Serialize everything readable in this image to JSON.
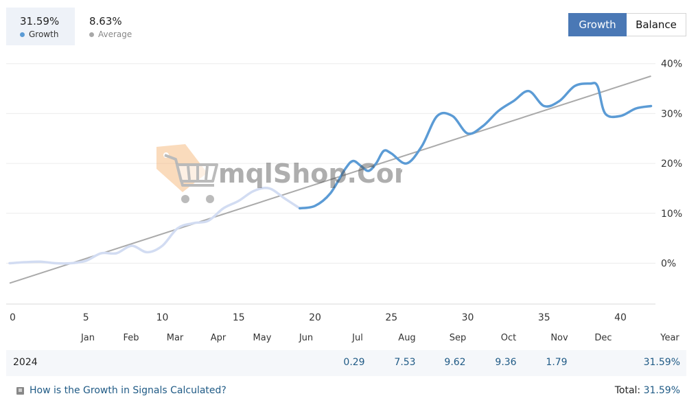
{
  "summary": {
    "growth": {
      "value": "31.59%",
      "label": "Growth",
      "color": "#5b9bd5"
    },
    "average": {
      "value": "8.63%",
      "label": "Average",
      "color": "#a8a8a8"
    }
  },
  "toggle": {
    "growth_label": "Growth",
    "balance_label": "Balance",
    "active": "Growth"
  },
  "chart_data": {
    "type": "line",
    "x_ticks": [
      "0",
      "5",
      "10",
      "15",
      "20",
      "25",
      "30",
      "35",
      "40"
    ],
    "y_ticks": [
      "40%",
      "30%",
      "20%",
      "10%",
      "0%"
    ],
    "month_labels": [
      "Jan",
      "Feb",
      "Mar",
      "Apr",
      "May",
      "Jun",
      "Jul",
      "Aug",
      "Sep",
      "Oct",
      "Nov",
      "Dec",
      "Year"
    ],
    "xlim": [
      0,
      42
    ],
    "ylim": [
      -8,
      42
    ],
    "series": [
      {
        "name": "Growth",
        "color": "#5b9bd5",
        "faded_color": "#d2dcf2",
        "highlight_from_x": 18.5,
        "x": [
          0,
          1,
          2,
          3,
          4,
          5,
          6,
          7,
          8,
          9,
          10,
          11,
          12,
          13,
          14,
          15,
          16,
          17,
          18,
          19,
          20,
          21,
          22,
          22.5,
          23,
          23.5,
          24,
          24.5,
          25,
          26,
          27,
          28,
          29,
          30,
          31,
          32,
          33,
          34,
          35,
          36,
          37,
          38,
          38.5,
          39,
          40,
          41,
          42
        ],
        "y": [
          0.0,
          0.2,
          0.3,
          0.0,
          0.0,
          0.5,
          2.0,
          2.0,
          3.5,
          2.2,
          3.5,
          7.0,
          8.0,
          8.5,
          11.0,
          12.5,
          14.5,
          15.0,
          13.0,
          11.0,
          11.5,
          14.0,
          19.0,
          20.5,
          19.5,
          18.5,
          20.0,
          22.5,
          22.0,
          20.0,
          23.5,
          29.5,
          29.5,
          26.0,
          27.5,
          30.5,
          32.5,
          34.5,
          31.5,
          32.5,
          35.5,
          36.0,
          35.5,
          30.0,
          29.5,
          31.0,
          31.5
        ]
      },
      {
        "name": "Average",
        "color": "#aaaaaa",
        "x": [
          0,
          42
        ],
        "y": [
          -4,
          37.5
        ]
      }
    ]
  },
  "year_row": {
    "year": "2024",
    "months": [
      {
        "month": "Jul",
        "value": "0.29"
      },
      {
        "month": "Aug",
        "value": "7.53"
      },
      {
        "month": "Sep",
        "value": "9.62"
      },
      {
        "month": "Oct",
        "value": "9.36"
      },
      {
        "month": "Nov",
        "value": "1.79"
      }
    ],
    "total": "31.59%"
  },
  "footer": {
    "link_text": "How is the Growth in Signals Calculated?",
    "total_label": "Total:",
    "total_value": "31.59%"
  },
  "watermark": {
    "text": "mqlShop.Com"
  }
}
